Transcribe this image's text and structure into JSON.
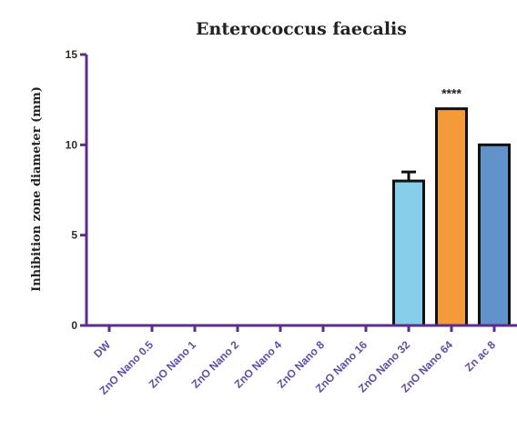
{
  "chart_data": {
    "type": "bar",
    "title": "Enterococcus faecalis",
    "ylabel": "Inhibition zone diameter (mm)",
    "xlabel": "",
    "ylim": [
      0,
      15
    ],
    "yticks": [
      0,
      5,
      10,
      15
    ],
    "ytick_labels": [
      "0",
      "5",
      "10",
      "15"
    ],
    "categories": [
      "DW",
      "ZnO Nano 0.5",
      "ZnO Nano 1",
      "ZnO Nano 2",
      "ZnO Nano 4",
      "ZnO Nano 8",
      "ZnO Nano 16",
      "ZnO Nano 32",
      "ZnO Nano 64",
      "Zn ac 8"
    ],
    "values": [
      0,
      0,
      0,
      0,
      0,
      0,
      0,
      8,
      12,
      10
    ],
    "errors": [
      0,
      0,
      0,
      0,
      0,
      0,
      0,
      0.5,
      0,
      0
    ],
    "annotations": [
      {
        "category": "ZnO Nano 64",
        "text": "****"
      }
    ],
    "grid": false,
    "colors": {
      "axis": "#5b2d8e",
      "bar_outline": "#111111",
      "bars": [
        "#87ceeb",
        "#87ceeb",
        "#87ceeb",
        "#87ceeb",
        "#87ceeb",
        "#87ceeb",
        "#87ceeb",
        "#87ceeb",
        "#f59a38",
        "#5f93c9"
      ]
    }
  }
}
